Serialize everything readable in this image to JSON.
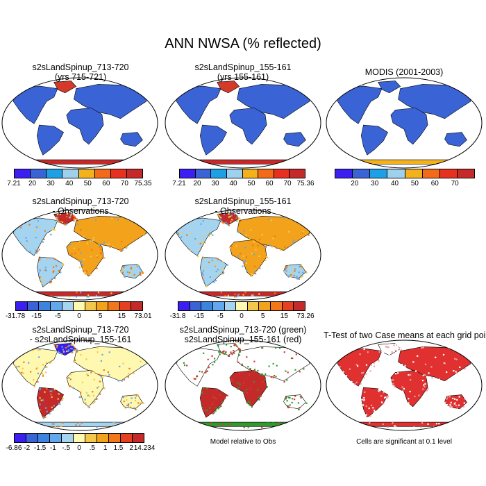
{
  "title": "ANN NWSA (% reflected)",
  "panels": [
    {
      "id": "p1",
      "title1": "s2sLandSpinup_713-720",
      "title2": "(yrs 715-721)",
      "colorbar": "abs",
      "ticks": [
        "7.21",
        "20",
        "30",
        "40",
        "50",
        "60",
        "70",
        "75.35"
      ]
    },
    {
      "id": "p2",
      "title1": "s2sLandSpinup_155-161",
      "title2": "(yrs 155-161)",
      "colorbar": "abs",
      "ticks": [
        "7.21",
        "20",
        "30",
        "40",
        "50",
        "60",
        "70",
        "75.36"
      ]
    },
    {
      "id": "p3",
      "title1": "MODIS (2001-2003)",
      "title2": "",
      "colorbar": "abs",
      "ticks": [
        "",
        "20",
        "30",
        "40",
        "50",
        "60",
        "70",
        ""
      ]
    },
    {
      "id": "p4",
      "title1": "s2sLandSpinup_713-720",
      "title2": "- Observations",
      "colorbar": "diff",
      "ticks": [
        "-31.78",
        "-15",
        "-5",
        "0",
        "5",
        "15",
        "73.01"
      ]
    },
    {
      "id": "p5",
      "title1": "s2sLandSpinup_155-161",
      "title2": "- Observations",
      "colorbar": "diff",
      "ticks": [
        "-31.8",
        "-15",
        "-5",
        "0",
        "5",
        "15",
        "73.26"
      ]
    },
    {
      "id": "p6",
      "title1": "s2sLandSpinup_713-720",
      "title2": "- s2sLandSpinup_155-161",
      "colorbar": "diff2",
      "ticks": [
        "-6.86",
        "-2",
        "-1.5",
        "-1",
        "-.5",
        "0",
        ".5",
        "1",
        "1.5",
        "2",
        "14.234"
      ]
    },
    {
      "id": "p7",
      "title1": "s2sLandSpinup_713-720 (green)",
      "title2": "s2sLandSpinup_155-161 (red)",
      "note": "Model relative to Obs"
    },
    {
      "id": "p8",
      "title1": "T-Test of two Case means at each grid point",
      "title2": "",
      "note": "Cells are significant at 0.1 level"
    }
  ],
  "colors": {
    "abs": [
      "#3b1ef0",
      "#3a64d6",
      "#1ea0e6",
      "#9fd0ee",
      "#f3b21c",
      "#f26a1a",
      "#e63020",
      "#c42a2a"
    ],
    "diff": [
      "#3b1ef0",
      "#3a64d6",
      "#3c84e0",
      "#63a7ec",
      "#a4d4f0",
      "#fff8b0",
      "#f3c84a",
      "#f3a21c",
      "#f2761a",
      "#e64020",
      "#c42a2a"
    ],
    "diff2": [
      "#3b1ef0",
      "#3a64d6",
      "#3c84e0",
      "#63a7ec",
      "#a4d4f0",
      "#fff8b0",
      "#f3c84a",
      "#f3a21c",
      "#f2761a",
      "#e64020",
      "#c42a2a"
    ]
  }
}
